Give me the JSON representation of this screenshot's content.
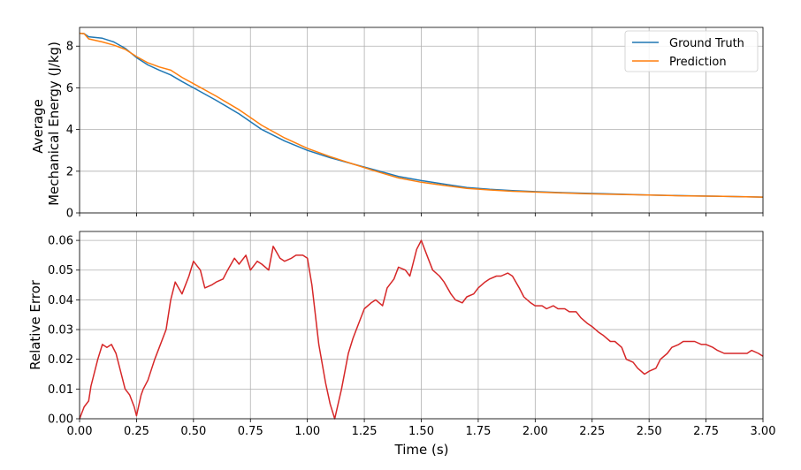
{
  "chart_data": [
    {
      "type": "line",
      "title": "",
      "xlabel": "",
      "ylabel_lines": [
        "Average",
        "Mechanical Energy (J/kg)"
      ],
      "xlim": [
        0,
        3
      ],
      "ylim": [
        0,
        8.9
      ],
      "xticks": [
        0,
        0.25,
        0.5,
        0.75,
        1.0,
        1.25,
        1.5,
        1.75,
        2.0,
        2.25,
        2.5,
        2.75,
        3.0
      ],
      "yticks": [
        0,
        2,
        4,
        6,
        8
      ],
      "ytick_labels": [
        "0",
        "2",
        "4",
        "6",
        "8"
      ],
      "grid": true,
      "legend_position": "top-right",
      "series": [
        {
          "name": "Ground Truth",
          "color": "#1f77b4",
          "x": [
            0,
            0.02,
            0.04,
            0.1,
            0.15,
            0.2,
            0.25,
            0.3,
            0.35,
            0.4,
            0.45,
            0.5,
            0.6,
            0.7,
            0.8,
            0.9,
            1.0,
            1.1,
            1.2,
            1.3,
            1.4,
            1.5,
            1.6,
            1.7,
            1.8,
            1.9,
            2.0,
            2.1,
            2.2,
            2.3,
            2.4,
            2.5,
            2.6,
            2.7,
            2.8,
            2.9,
            3.0
          ],
          "values": [
            8.62,
            8.6,
            8.45,
            8.38,
            8.2,
            7.9,
            7.45,
            7.1,
            6.85,
            6.62,
            6.3,
            6.0,
            5.4,
            4.75,
            4.0,
            3.45,
            3.0,
            2.65,
            2.35,
            2.05,
            1.75,
            1.55,
            1.38,
            1.22,
            1.13,
            1.07,
            1.02,
            0.98,
            0.95,
            0.92,
            0.89,
            0.86,
            0.84,
            0.82,
            0.8,
            0.78,
            0.76
          ]
        },
        {
          "name": "Prediction",
          "color": "#ff7f0e",
          "x": [
            0,
            0.02,
            0.04,
            0.1,
            0.15,
            0.2,
            0.25,
            0.3,
            0.35,
            0.4,
            0.45,
            0.5,
            0.6,
            0.7,
            0.8,
            0.9,
            1.0,
            1.1,
            1.2,
            1.3,
            1.4,
            1.5,
            1.6,
            1.7,
            1.8,
            1.9,
            2.0,
            2.1,
            2.2,
            2.3,
            2.4,
            2.5,
            2.6,
            2.7,
            2.8,
            2.9,
            3.0
          ],
          "values": [
            8.62,
            8.6,
            8.35,
            8.2,
            8.05,
            7.85,
            7.5,
            7.2,
            7.0,
            6.85,
            6.5,
            6.2,
            5.6,
            4.95,
            4.2,
            3.6,
            3.1,
            2.7,
            2.35,
            2.0,
            1.68,
            1.47,
            1.32,
            1.18,
            1.1,
            1.04,
            1.0,
            0.96,
            0.93,
            0.9,
            0.88,
            0.86,
            0.83,
            0.81,
            0.8,
            0.78,
            0.76
          ]
        }
      ]
    },
    {
      "type": "line",
      "title": "",
      "xlabel": "Time (s)",
      "ylabel": "Relative Error",
      "xlim": [
        0,
        3
      ],
      "ylim": [
        0,
        0.063
      ],
      "xticks": [
        0,
        0.25,
        0.5,
        0.75,
        1.0,
        1.25,
        1.5,
        1.75,
        2.0,
        2.25,
        2.5,
        2.75,
        3.0
      ],
      "xtick_labels": [
        "0.00",
        "0.25",
        "0.50",
        "0.75",
        "1.00",
        "1.25",
        "1.50",
        "1.75",
        "2.00",
        "2.25",
        "2.50",
        "2.75",
        "3.00"
      ],
      "yticks": [
        0,
        0.01,
        0.02,
        0.03,
        0.04,
        0.05,
        0.06
      ],
      "ytick_labels": [
        "0.00",
        "0.01",
        "0.02",
        "0.03",
        "0.04",
        "0.05",
        "0.06"
      ],
      "grid": true,
      "series": [
        {
          "color": "#d62728",
          "x": [
            0,
            0.02,
            0.04,
            0.05,
            0.08,
            0.1,
            0.12,
            0.14,
            0.16,
            0.2,
            0.22,
            0.24,
            0.25,
            0.27,
            0.28,
            0.3,
            0.33,
            0.35,
            0.38,
            0.4,
            0.42,
            0.45,
            0.48,
            0.5,
            0.53,
            0.55,
            0.58,
            0.6,
            0.63,
            0.65,
            0.68,
            0.7,
            0.73,
            0.75,
            0.78,
            0.8,
            0.83,
            0.85,
            0.88,
            0.9,
            0.93,
            0.95,
            0.98,
            1.0,
            1.02,
            1.05,
            1.08,
            1.1,
            1.12,
            1.15,
            1.18,
            1.2,
            1.23,
            1.25,
            1.28,
            1.3,
            1.33,
            1.35,
            1.38,
            1.4,
            1.43,
            1.45,
            1.48,
            1.5,
            1.53,
            1.55,
            1.58,
            1.6,
            1.63,
            1.65,
            1.68,
            1.7,
            1.73,
            1.75,
            1.78,
            1.8,
            1.83,
            1.85,
            1.88,
            1.9,
            1.93,
            1.95,
            1.98,
            2.0,
            2.03,
            2.05,
            2.08,
            2.1,
            2.13,
            2.15,
            2.18,
            2.2,
            2.23,
            2.25,
            2.28,
            2.3,
            2.33,
            2.35,
            2.38,
            2.4,
            2.43,
            2.45,
            2.48,
            2.5,
            2.53,
            2.55,
            2.58,
            2.6,
            2.63,
            2.65,
            2.68,
            2.7,
            2.73,
            2.75,
            2.78,
            2.8,
            2.83,
            2.85,
            2.88,
            2.9,
            2.93,
            2.95,
            2.98,
            3.0
          ],
          "values": [
            0.0,
            0.004,
            0.006,
            0.011,
            0.02,
            0.025,
            0.024,
            0.025,
            0.022,
            0.01,
            0.008,
            0.004,
            0.001,
            0.008,
            0.01,
            0.013,
            0.02,
            0.024,
            0.03,
            0.04,
            0.046,
            0.042,
            0.048,
            0.053,
            0.05,
            0.044,
            0.045,
            0.046,
            0.047,
            0.05,
            0.054,
            0.052,
            0.055,
            0.05,
            0.053,
            0.052,
            0.05,
            0.058,
            0.054,
            0.053,
            0.054,
            0.055,
            0.055,
            0.054,
            0.045,
            0.025,
            0.012,
            0.005,
            0.0,
            0.01,
            0.022,
            0.027,
            0.033,
            0.037,
            0.039,
            0.04,
            0.038,
            0.044,
            0.047,
            0.051,
            0.05,
            0.048,
            0.057,
            0.06,
            0.054,
            0.05,
            0.048,
            0.046,
            0.042,
            0.04,
            0.039,
            0.041,
            0.042,
            0.044,
            0.046,
            0.047,
            0.048,
            0.048,
            0.049,
            0.048,
            0.044,
            0.041,
            0.039,
            0.038,
            0.038,
            0.037,
            0.038,
            0.037,
            0.037,
            0.036,
            0.036,
            0.034,
            0.032,
            0.031,
            0.029,
            0.028,
            0.026,
            0.026,
            0.024,
            0.02,
            0.019,
            0.017,
            0.015,
            0.016,
            0.017,
            0.02,
            0.022,
            0.024,
            0.025,
            0.026,
            0.026,
            0.026,
            0.025,
            0.025,
            0.024,
            0.023,
            0.022,
            0.022,
            0.022,
            0.022,
            0.022,
            0.023,
            0.022,
            0.021
          ]
        }
      ]
    }
  ],
  "legend": [
    {
      "label": "Ground Truth",
      "color": "#1f77b4"
    },
    {
      "label": "Prediction",
      "color": "#ff7f0e"
    }
  ]
}
